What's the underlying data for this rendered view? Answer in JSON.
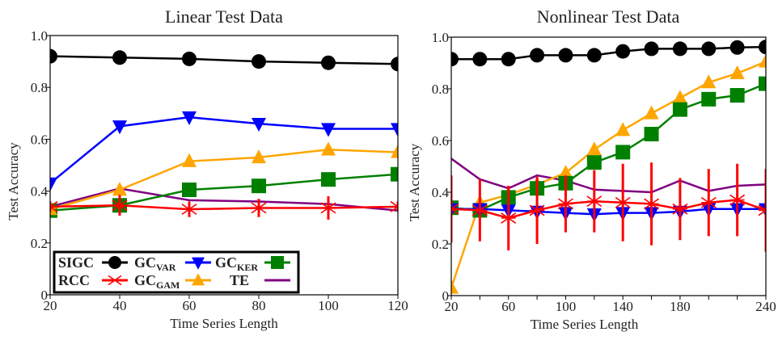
{
  "legend": {
    "entries": [
      {
        "label": "SIGC",
        "sub": "",
        "series": "SIGC"
      },
      {
        "label": "GC",
        "sub": "VAR",
        "series": "GC_VAR"
      },
      {
        "label": "GC",
        "sub": "KER",
        "series": "GC_KER"
      },
      {
        "label": "RCC",
        "sub": "",
        "series": "RCC"
      },
      {
        "label": "GC",
        "sub": "GAM",
        "series": "GC_GAM"
      },
      {
        "label": "TE",
        "sub": "",
        "series": "TE"
      }
    ]
  },
  "styles": {
    "SIGC": {
      "color": "#000000",
      "marker": "circle"
    },
    "GC_VAR": {
      "color": "#0000ff",
      "marker": "triangle-down"
    },
    "GC_KER": {
      "color": "#008000",
      "marker": "square"
    },
    "RCC": {
      "color": "#ff0000",
      "marker": "x"
    },
    "GC_GAM": {
      "color": "#ffa500",
      "marker": "triangle-up"
    },
    "TE": {
      "color": "#800080",
      "marker": "none"
    }
  },
  "chart_data": [
    {
      "type": "line",
      "title": "Linear Test Data",
      "xlabel": "Time Series Length",
      "ylabel": "Test Accuracy",
      "xlim": [
        20,
        120
      ],
      "ylim": [
        0,
        1
      ],
      "xticks": [
        20,
        40,
        60,
        80,
        100,
        120
      ],
      "xtick_labels": [
        "20",
        "40",
        "60",
        "80",
        "100",
        "120"
      ],
      "yticks": [
        0,
        0.2,
        0.4,
        0.6,
        0.8,
        1.0
      ],
      "ytick_labels": [
        "0",
        "0.2",
        "0.4",
        "0.6",
        "0.8",
        "1.0"
      ],
      "legend_position": "bottom-left",
      "x": [
        20,
        40,
        60,
        80,
        100,
        120
      ],
      "series": [
        {
          "name": "TE",
          "values": [
            0.34,
            0.41,
            0.365,
            0.36,
            0.35,
            0.325
          ]
        },
        {
          "name": "GC_KER",
          "values": [
            0.325,
            0.345,
            0.405,
            0.42,
            0.445,
            0.465
          ]
        },
        {
          "name": "GC_GAM",
          "values": [
            0.33,
            0.405,
            0.515,
            0.53,
            0.56,
            0.55
          ]
        },
        {
          "name": "GC_VAR",
          "values": [
            0.43,
            0.65,
            0.685,
            0.66,
            0.64,
            0.64
          ]
        },
        {
          "name": "RCC",
          "values": [
            0.34,
            0.345,
            0.33,
            0.335,
            0.335,
            0.34
          ],
          "error": [
            0.02,
            0.04,
            0.03,
            0.035,
            0.045,
            0.02
          ]
        },
        {
          "name": "SIGC",
          "values": [
            0.92,
            0.915,
            0.91,
            0.9,
            0.895,
            0.89
          ]
        }
      ]
    },
    {
      "type": "line",
      "title": "Nonlinear Test Data",
      "xlabel": "Time Series Length",
      "ylabel": "Test Accuracy",
      "xlim": [
        20,
        240
      ],
      "ylim": [
        0,
        1
      ],
      "xticks": [
        20,
        40,
        60,
        80,
        100,
        120,
        140,
        160,
        180,
        200,
        220,
        240
      ],
      "xtick_labels": [
        "20",
        "",
        "60",
        "",
        "100",
        "",
        "140",
        "",
        "180",
        "",
        "",
        "240"
      ],
      "yticks": [
        0,
        0.2,
        0.4,
        0.6,
        0.8,
        1.0
      ],
      "ytick_labels": [
        "0",
        "0.2",
        "0.4",
        "0.6",
        "0.8",
        "1.0"
      ],
      "x": [
        20,
        40,
        60,
        80,
        100,
        120,
        140,
        160,
        180,
        200,
        220,
        240
      ],
      "series": [
        {
          "name": "TE",
          "values": [
            0.53,
            0.45,
            0.415,
            0.465,
            0.445,
            0.41,
            0.405,
            0.4,
            0.445,
            0.405,
            0.425,
            0.43
          ]
        },
        {
          "name": "GC_GAM",
          "values": [
            0.03,
            0.36,
            0.39,
            0.43,
            0.475,
            0.565,
            0.64,
            0.705,
            0.765,
            0.825,
            0.86,
            0.905
          ]
        },
        {
          "name": "GC_KER",
          "values": [
            0.34,
            0.33,
            0.38,
            0.415,
            0.435,
            0.515,
            0.555,
            0.625,
            0.72,
            0.76,
            0.775,
            0.82
          ]
        },
        {
          "name": "GC_VAR",
          "values": [
            0.335,
            0.335,
            0.33,
            0.325,
            0.32,
            0.315,
            0.32,
            0.32,
            0.325,
            0.335,
            0.335,
            0.335
          ]
        },
        {
          "name": "RCC",
          "values": [
            0.335,
            0.33,
            0.3,
            0.33,
            0.355,
            0.365,
            0.36,
            0.355,
            0.335,
            0.36,
            0.37,
            0.33
          ],
          "error": [
            0.13,
            0.12,
            0.125,
            0.13,
            0.11,
            0.12,
            0.15,
            0.16,
            0.12,
            0.13,
            0.14,
            0.16
          ]
        },
        {
          "name": "SIGC",
          "values": [
            0.915,
            0.915,
            0.915,
            0.93,
            0.93,
            0.93,
            0.945,
            0.955,
            0.955,
            0.955,
            0.96,
            0.962
          ]
        }
      ]
    }
  ]
}
